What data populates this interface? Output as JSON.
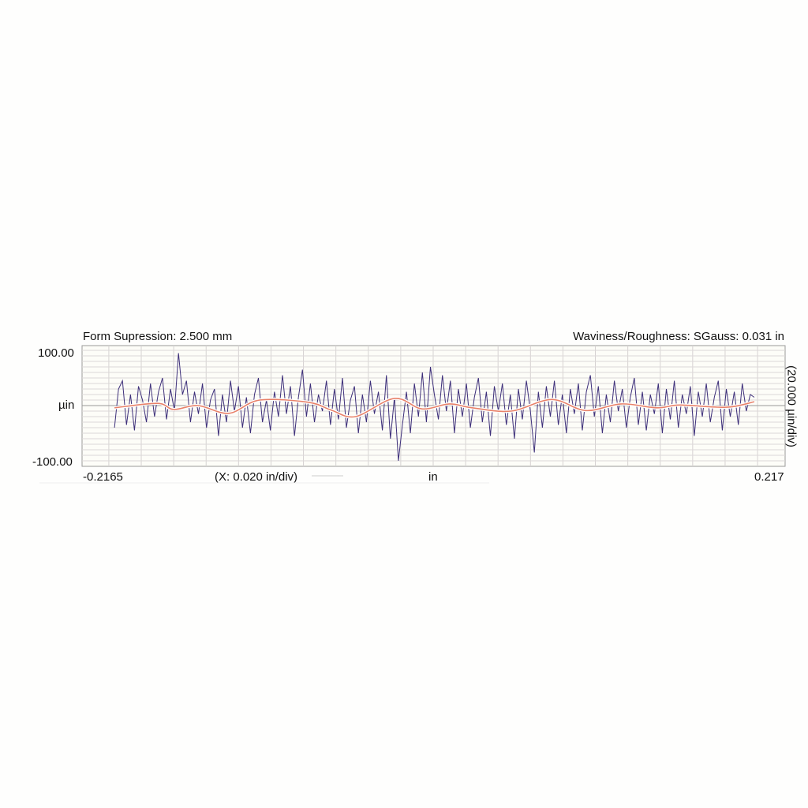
{
  "chart_data": {
    "type": "line",
    "title_left": "Form Supression: 2.500 mm",
    "title_right": "Waviness/Roughness: SGauss: 0.031 in",
    "ylabel": "µin",
    "ytick_top": "100.00",
    "ytick_bottom": "-100.00",
    "y_scale_label": "(20.000 µin/div)",
    "x_scale_label": "(X: 0.020 in/div)",
    "xlabel": "in",
    "xtick_left": "-0.2165",
    "xtick_right": "0.217",
    "xlim": [
      -0.2165,
      0.217
    ],
    "ylim": [
      -100,
      100
    ],
    "grid": true,
    "x_div": 0.02,
    "y_div": 20,
    "series": [
      {
        "role": "roughness",
        "color": "#3d2f7a",
        "x_range": [
          -0.1965,
          0.198
        ],
        "values": [
          -40,
          30,
          45,
          -35,
          20,
          -45,
          35,
          10,
          -30,
          40,
          -20,
          25,
          50,
          -25,
          30,
          -10,
          95,
          20,
          45,
          -30,
          25,
          -15,
          40,
          -40,
          10,
          30,
          -55,
          20,
          -30,
          45,
          -10,
          35,
          -40,
          15,
          -50,
          20,
          50,
          -30,
          10,
          -45,
          25,
          -20,
          55,
          -15,
          35,
          -55,
          15,
          65,
          -20,
          40,
          -30,
          20,
          -10,
          45,
          -35,
          30,
          -25,
          50,
          -40,
          10,
          35,
          -50,
          20,
          -30,
          45,
          -15,
          25,
          -45,
          55,
          -60,
          15,
          -100,
          -35,
          25,
          -50,
          40,
          -20,
          60,
          -30,
          70,
          20,
          -25,
          55,
          -10,
          45,
          -50,
          30,
          -20,
          40,
          -40,
          15,
          50,
          -30,
          25,
          -55,
          35,
          -10,
          40,
          -35,
          20,
          -60,
          30,
          -25,
          45,
          -10,
          -85,
          25,
          -40,
          35,
          -20,
          45,
          -35,
          20,
          -50,
          30,
          -15,
          40,
          -45,
          25,
          55,
          -20,
          35,
          -50,
          20,
          -30,
          45,
          -10,
          30,
          -40,
          15,
          50,
          -35,
          25,
          -45,
          20,
          -15,
          40,
          -50,
          30,
          -25,
          45,
          -40,
          20,
          -15,
          35,
          -55,
          25,
          -20,
          40,
          -30,
          15,
          45,
          -45,
          30,
          -20,
          25,
          -35,
          40,
          -10,
          20,
          15
        ]
      },
      {
        "role": "waviness",
        "color": "#e8826a",
        "x": [
          -0.1965,
          -0.17,
          -0.16,
          -0.145,
          -0.126,
          -0.107,
          -0.077,
          -0.063,
          -0.048,
          -0.024,
          -0.007,
          0.01,
          0.024,
          0.048,
          0.073,
          0.094,
          0.116,
          0.138,
          0.152,
          0.181,
          0.198
        ],
        "values": [
          -4,
          4,
          -7,
          0,
          -14,
          10,
          6,
          -8,
          -20,
          13,
          -6,
          3,
          -4,
          -10,
          11,
          -9,
          3,
          -4,
          1,
          -3,
          7
        ]
      }
    ]
  }
}
